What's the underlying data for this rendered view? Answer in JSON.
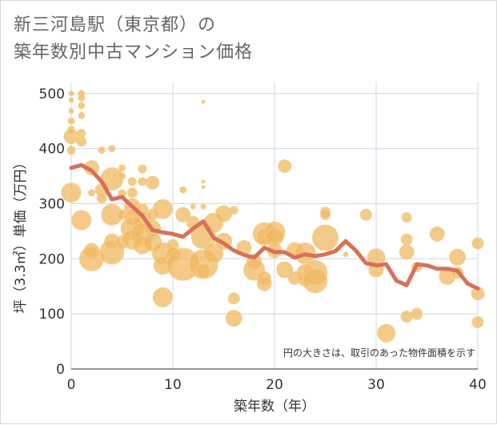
{
  "chart_data": {
    "type": "scatter",
    "title": "新三河島駅（東京都）の\n築年数別中古マンション価格",
    "title_lines": [
      "新三河島駅（東京都）の",
      "築年数別中古マンション価格"
    ],
    "xlabel": "築年数（年）",
    "ylabel": "坪（3.3㎡）単価（万円）",
    "xlim": [
      0,
      40
    ],
    "ylim": [
      0,
      520
    ],
    "x_ticks": [
      0,
      10,
      20,
      30,
      40
    ],
    "y_ticks": [
      0,
      100,
      200,
      300,
      400,
      500
    ],
    "grid": true,
    "note": "円の大きさは、取引のあった物件面積を示す",
    "colors": {
      "bubble": "#f0b860",
      "bubble_stroke": "#f5ce8c",
      "line": "#d9705a",
      "grid": "#cdd8e4",
      "axis": "#333333"
    },
    "series": [
      {
        "type": "bubble",
        "points": [
          {
            "x": 0,
            "y": 500,
            "s": 3
          },
          {
            "x": 0,
            "y": 488,
            "s": 3
          },
          {
            "x": 0,
            "y": 468,
            "s": 3
          },
          {
            "x": 0,
            "y": 450,
            "s": 4
          },
          {
            "x": 0,
            "y": 435,
            "s": 4
          },
          {
            "x": 0,
            "y": 422,
            "s": 9
          },
          {
            "x": 0,
            "y": 397,
            "s": 5
          },
          {
            "x": 0,
            "y": 320,
            "s": 12
          },
          {
            "x": 1,
            "y": 500,
            "s": 4
          },
          {
            "x": 1,
            "y": 492,
            "s": 4
          },
          {
            "x": 1,
            "y": 478,
            "s": 4
          },
          {
            "x": 1,
            "y": 460,
            "s": 4
          },
          {
            "x": 1,
            "y": 428,
            "s": 5
          },
          {
            "x": 1,
            "y": 413,
            "s": 6
          },
          {
            "x": 1,
            "y": 270,
            "s": 12
          },
          {
            "x": 2,
            "y": 365,
            "s": 9
          },
          {
            "x": 2,
            "y": 320,
            "s": 4
          },
          {
            "x": 2,
            "y": 215,
            "s": 9
          },
          {
            "x": 2,
            "y": 200,
            "s": 15
          },
          {
            "x": 3,
            "y": 397,
            "s": 4
          },
          {
            "x": 3,
            "y": 325,
            "s": 8
          },
          {
            "x": 3,
            "y": 310,
            "s": 6
          },
          {
            "x": 4,
            "y": 400,
            "s": 4
          },
          {
            "x": 4,
            "y": 345,
            "s": 14
          },
          {
            "x": 4,
            "y": 280,
            "s": 13
          },
          {
            "x": 4,
            "y": 232,
            "s": 9
          },
          {
            "x": 4,
            "y": 212,
            "s": 15
          },
          {
            "x": 5,
            "y": 365,
            "s": 4
          },
          {
            "x": 5,
            "y": 350,
            "s": 4
          },
          {
            "x": 5,
            "y": 318,
            "s": 5
          },
          {
            "x": 5,
            "y": 280,
            "s": 6
          },
          {
            "x": 5,
            "y": 230,
            "s": 8
          },
          {
            "x": 6,
            "y": 340,
            "s": 5
          },
          {
            "x": 6,
            "y": 320,
            "s": 6
          },
          {
            "x": 6,
            "y": 295,
            "s": 10
          },
          {
            "x": 6,
            "y": 275,
            "s": 9
          },
          {
            "x": 6,
            "y": 255,
            "s": 14
          },
          {
            "x": 6,
            "y": 235,
            "s": 12
          },
          {
            "x": 7,
            "y": 363,
            "s": 5
          },
          {
            "x": 7,
            "y": 340,
            "s": 5
          },
          {
            "x": 7,
            "y": 290,
            "s": 7
          },
          {
            "x": 7,
            "y": 270,
            "s": 11
          },
          {
            "x": 7,
            "y": 245,
            "s": 14
          },
          {
            "x": 7,
            "y": 225,
            "s": 11
          },
          {
            "x": 8,
            "y": 338,
            "s": 8
          },
          {
            "x": 8,
            "y": 280,
            "s": 7
          },
          {
            "x": 8,
            "y": 255,
            "s": 10
          },
          {
            "x": 8,
            "y": 230,
            "s": 11
          },
          {
            "x": 9,
            "y": 290,
            "s": 12
          },
          {
            "x": 9,
            "y": 210,
            "s": 13
          },
          {
            "x": 9,
            "y": 188,
            "s": 11
          },
          {
            "x": 9,
            "y": 130,
            "s": 12
          },
          {
            "x": 10,
            "y": 225,
            "s": 7
          },
          {
            "x": 10,
            "y": 208,
            "s": 9
          },
          {
            "x": 11,
            "y": 325,
            "s": 4
          },
          {
            "x": 11,
            "y": 280,
            "s": 9
          },
          {
            "x": 11,
            "y": 190,
            "s": 20
          },
          {
            "x": 12,
            "y": 295,
            "s": 3
          },
          {
            "x": 12,
            "y": 265,
            "s": 8
          },
          {
            "x": 13,
            "y": 485,
            "s": 2
          },
          {
            "x": 13,
            "y": 340,
            "s": 2
          },
          {
            "x": 13,
            "y": 330,
            "s": 2
          },
          {
            "x": 13,
            "y": 295,
            "s": 3
          },
          {
            "x": 13,
            "y": 240,
            "s": 15
          },
          {
            "x": 13,
            "y": 190,
            "s": 18
          },
          {
            "x": 13,
            "y": 178,
            "s": 9
          },
          {
            "x": 14,
            "y": 265,
            "s": 12
          },
          {
            "x": 14,
            "y": 210,
            "s": 12
          },
          {
            "x": 15,
            "y": 282,
            "s": 10
          },
          {
            "x": 15,
            "y": 232,
            "s": 10
          },
          {
            "x": 16,
            "y": 288,
            "s": 5
          },
          {
            "x": 16,
            "y": 128,
            "s": 7
          },
          {
            "x": 16,
            "y": 92,
            "s": 10
          },
          {
            "x": 17,
            "y": 220,
            "s": 9
          },
          {
            "x": 18,
            "y": 195,
            "s": 9
          },
          {
            "x": 18,
            "y": 180,
            "s": 13
          },
          {
            "x": 19,
            "y": 245,
            "s": 14
          },
          {
            "x": 19,
            "y": 240,
            "s": 10
          },
          {
            "x": 19,
            "y": 165,
            "s": 8
          },
          {
            "x": 19,
            "y": 155,
            "s": 9
          },
          {
            "x": 20,
            "y": 248,
            "s": 13
          },
          {
            "x": 20,
            "y": 240,
            "s": 11
          },
          {
            "x": 20,
            "y": 215,
            "s": 9
          },
          {
            "x": 21,
            "y": 368,
            "s": 8
          },
          {
            "x": 21,
            "y": 180,
            "s": 10
          },
          {
            "x": 22,
            "y": 215,
            "s": 10
          },
          {
            "x": 22,
            "y": 165,
            "s": 8
          },
          {
            "x": 23,
            "y": 210,
            "s": 13
          },
          {
            "x": 23,
            "y": 175,
            "s": 10
          },
          {
            "x": 23,
            "y": 162,
            "s": 8
          },
          {
            "x": 24,
            "y": 175,
            "s": 15
          },
          {
            "x": 24,
            "y": 160,
            "s": 15
          },
          {
            "x": 25,
            "y": 285,
            "s": 6
          },
          {
            "x": 25,
            "y": 280,
            "s": 6
          },
          {
            "x": 25,
            "y": 238,
            "s": 16
          },
          {
            "x": 27,
            "y": 208,
            "s": 3
          },
          {
            "x": 29,
            "y": 280,
            "s": 7
          },
          {
            "x": 30,
            "y": 202,
            "s": 11
          },
          {
            "x": 30,
            "y": 180,
            "s": 9
          },
          {
            "x": 31,
            "y": 65,
            "s": 11
          },
          {
            "x": 33,
            "y": 275,
            "s": 6
          },
          {
            "x": 33,
            "y": 235,
            "s": 7
          },
          {
            "x": 33,
            "y": 212,
            "s": 9
          },
          {
            "x": 33,
            "y": 95,
            "s": 7
          },
          {
            "x": 34,
            "y": 185,
            "s": 6
          },
          {
            "x": 34,
            "y": 100,
            "s": 7
          },
          {
            "x": 36,
            "y": 245,
            "s": 9
          },
          {
            "x": 37,
            "y": 168,
            "s": 10
          },
          {
            "x": 38,
            "y": 203,
            "s": 10
          },
          {
            "x": 38,
            "y": 175,
            "s": 7
          },
          {
            "x": 40,
            "y": 228,
            "s": 7
          },
          {
            "x": 40,
            "y": 137,
            "s": 8
          },
          {
            "x": 40,
            "y": 85,
            "s": 7
          }
        ]
      },
      {
        "type": "line",
        "x": [
          0,
          1,
          2,
          3,
          4,
          5,
          6,
          7,
          8,
          9,
          10,
          11,
          12,
          13,
          14,
          15,
          16,
          17,
          18,
          19,
          20,
          21,
          22,
          23,
          24,
          25,
          26,
          27,
          28,
          29,
          30,
          31,
          32,
          33,
          34,
          35,
          36,
          37,
          38,
          39,
          40
        ],
        "y": [
          365,
          370,
          360,
          340,
          308,
          312,
          295,
          278,
          252,
          248,
          245,
          240,
          255,
          268,
          238,
          228,
          215,
          207,
          202,
          220,
          212,
          212,
          202,
          208,
          205,
          208,
          214,
          232,
          215,
          192,
          188,
          190,
          160,
          152,
          190,
          188,
          182,
          182,
          178,
          155,
          146
        ]
      }
    ]
  }
}
